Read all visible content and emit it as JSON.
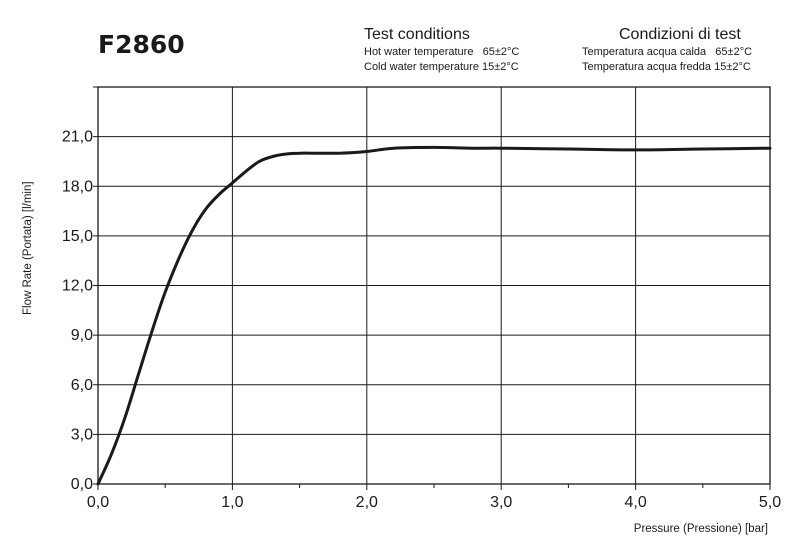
{
  "model": "F2860",
  "test_conditions": {
    "en": {
      "title": "Test conditions",
      "lines": [
        "Hot water temperature   65±2°C",
        "Cold water temperature 15±2°C"
      ]
    },
    "it": {
      "title": "Condizioni di test",
      "lines": [
        "Temperatura acqua calda   65±2°C",
        "Temperatura acqua fredda 15±2°C"
      ]
    }
  },
  "chart_data": {
    "type": "line",
    "xlabel": "Pressure (Pressione) [bar]",
    "ylabel": "Flow Rate (Portata) [l/min]",
    "xlim": [
      0,
      5
    ],
    "ylim": [
      0,
      21
    ],
    "x_ticks": [
      "0,0",
      "1,0",
      "2,0",
      "3,0",
      "4,0",
      "5,0"
    ],
    "y_ticks": [
      "0,0",
      "3,0",
      "6,0",
      "9,0",
      "12,0",
      "15,0",
      "18,0",
      "21,0"
    ],
    "grid": true,
    "series": [
      {
        "color": "#1a1a1a",
        "x": [
          0.0,
          0.1,
          0.2,
          0.3,
          0.4,
          0.5,
          0.6,
          0.7,
          0.8,
          0.9,
          1.0,
          1.1,
          1.2,
          1.3,
          1.4,
          1.5,
          1.6,
          1.8,
          2.0,
          2.2,
          2.5,
          2.8,
          3.0,
          3.5,
          4.0,
          4.5,
          5.0
        ],
        "y": [
          0.0,
          1.8,
          4.0,
          6.6,
          9.2,
          11.6,
          13.6,
          15.3,
          16.6,
          17.5,
          18.2,
          18.9,
          19.5,
          19.8,
          19.95,
          20.0,
          20.0,
          20.0,
          20.1,
          20.3,
          20.35,
          20.3,
          20.3,
          20.25,
          20.2,
          20.25,
          20.3
        ]
      }
    ]
  }
}
